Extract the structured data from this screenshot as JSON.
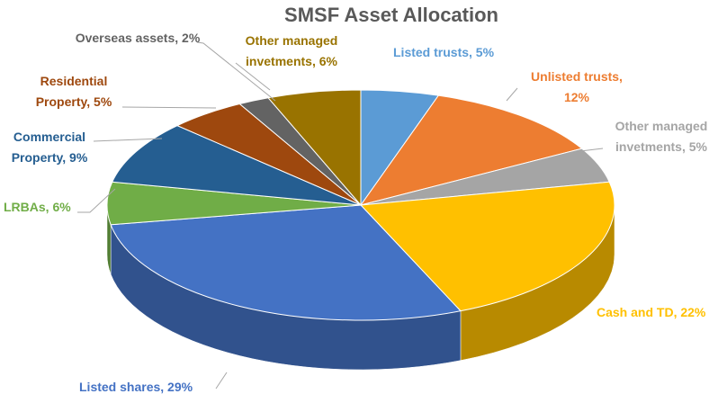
{
  "chart_data": {
    "type": "pie3d",
    "title": "SMSF Asset Allocation",
    "values": [
      5,
      12,
      5,
      22,
      29,
      6,
      9,
      5,
      2,
      6
    ],
    "value_labels": [
      "Listed trusts, 5%",
      "Unlisted trusts, 12%",
      "Other managed invetments, 5%",
      "Cash and TD, 22%",
      "Listed shares, 29%",
      "LRBAs, 6%",
      "Commercial Property, 9%",
      "Residential Property, 5%",
      "Overseas assets, 2%",
      "Other managed invetments, 6%"
    ],
    "colors": [
      "#5b9bd5",
      "#ed7d31",
      "#a5a5a5",
      "#ffc000",
      "#4472c4",
      "#70ad47",
      "#255e91",
      "#9e480e",
      "#636363",
      "#997300"
    ]
  }
}
